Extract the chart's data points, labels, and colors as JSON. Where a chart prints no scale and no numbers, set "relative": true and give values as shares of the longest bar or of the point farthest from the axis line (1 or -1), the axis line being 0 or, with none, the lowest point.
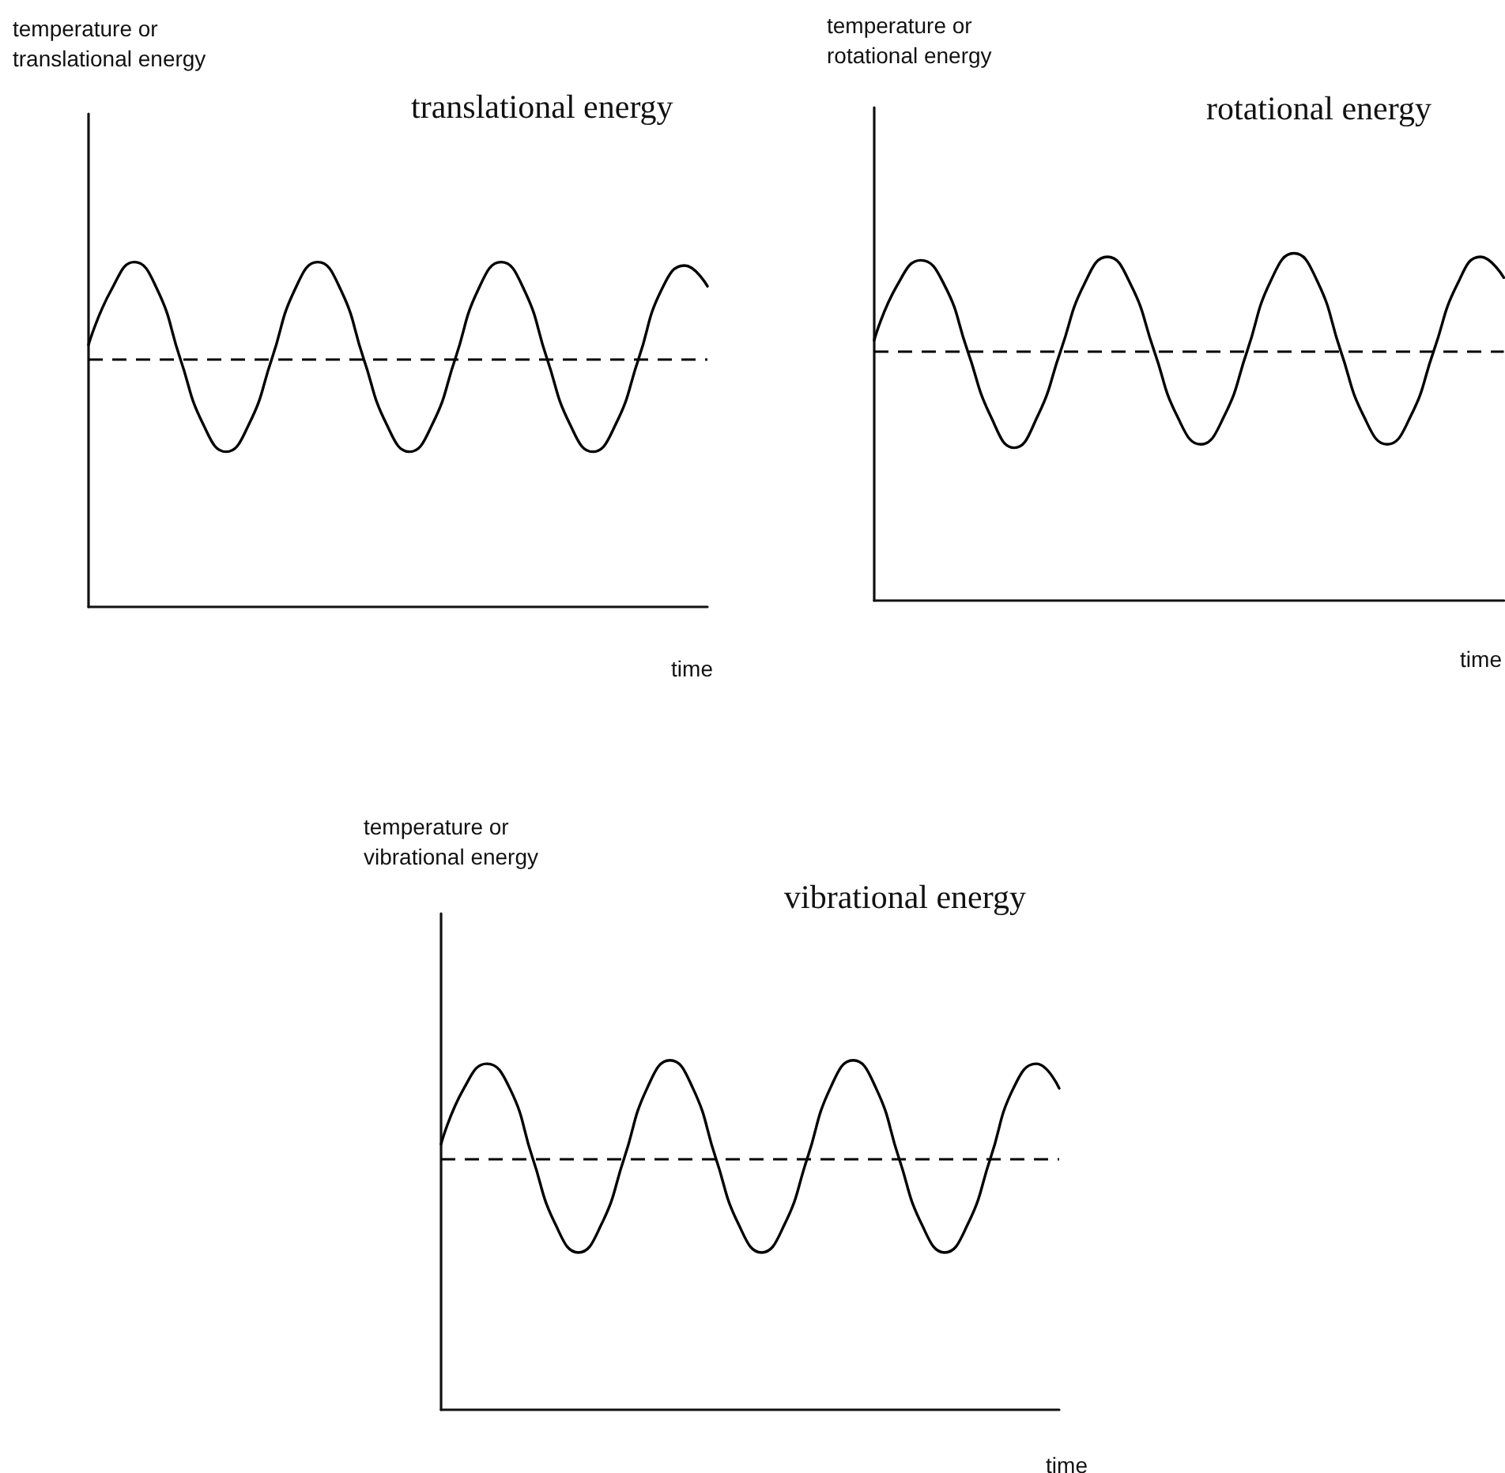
{
  "chart_data": [
    {
      "type": "line",
      "title": "translational energy",
      "xlabel": "time",
      "ylabel": "temperature or translational energy",
      "relative": true,
      "tick_labels": false,
      "marker": "none",
      "line_style": "solid",
      "categories": [
        null,
        null,
        null,
        null,
        null,
        null,
        null,
        null,
        null,
        null,
        null,
        null,
        null,
        null,
        null,
        null,
        null,
        null,
        null,
        null,
        null,
        null,
        null,
        null,
        null,
        null,
        null,
        null
      ],
      "series": [
        {
          "color": "#000000",
          "values": [
            0.76,
            0.92,
            1,
            0.92,
            0.72,
            0.53,
            0.45,
            0.53,
            0.72,
            0.92,
            1,
            0.92,
            0.72,
            0.53,
            0.45,
            0.53,
            0.72,
            0.92,
            1,
            0.92,
            0.72,
            0.53,
            0.45,
            0.53,
            0.72,
            0.92,
            0.99,
            0.93
          ]
        }
      ],
      "ref_lines": [
        {
          "axis": "y",
          "value": 0.72,
          "color": "#000000",
          "line_style": "dashed"
        }
      ]
    },
    {
      "type": "line",
      "title": "rotational energy",
      "xlabel": "time",
      "ylabel": "temperature or rotational energy",
      "relative": true,
      "tick_labels": false,
      "marker": "none",
      "line_style": "solid",
      "categories": [
        null,
        null,
        null,
        null,
        null,
        null,
        null,
        null,
        null,
        null,
        null,
        null,
        null,
        null,
        null,
        null,
        null,
        null,
        null,
        null,
        null,
        null,
        null,
        null,
        null,
        null,
        null,
        null
      ],
      "series": [
        {
          "color": "#000000",
          "values": [
            0.75,
            0.91,
            0.98,
            0.91,
            0.72,
            0.53,
            0.44,
            0.53,
            0.72,
            0.91,
            0.99,
            0.91,
            0.72,
            0.53,
            0.45,
            0.53,
            0.72,
            0.92,
            1,
            0.92,
            0.72,
            0.53,
            0.45,
            0.53,
            0.72,
            0.91,
            0.99,
            0.93
          ]
        }
      ],
      "ref_lines": [
        {
          "axis": "y",
          "value": 0.72,
          "color": "#000000",
          "line_style": "dashed"
        }
      ]
    },
    {
      "type": "line",
      "title": "vibrational energy",
      "xlabel": "time",
      "ylabel": "temperature or vibrational energy",
      "relative": true,
      "tick_labels": false,
      "marker": "none",
      "line_style": "solid",
      "categories": [
        null,
        null,
        null,
        null,
        null,
        null,
        null,
        null,
        null,
        null,
        null,
        null,
        null,
        null,
        null,
        null,
        null,
        null,
        null,
        null,
        null,
        null,
        null,
        null,
        null,
        null,
        null,
        null
      ],
      "series": [
        {
          "color": "#000000",
          "values": [
            0.76,
            0.92,
            0.99,
            0.92,
            0.72,
            0.53,
            0.45,
            0.53,
            0.72,
            0.92,
            1,
            0.92,
            0.72,
            0.53,
            0.45,
            0.53,
            0.72,
            0.92,
            1,
            0.92,
            0.72,
            0.53,
            0.45,
            0.53,
            0.72,
            0.92,
            0.99,
            0.92
          ]
        }
      ],
      "ref_lines": [
        {
          "axis": "y",
          "value": 0.72,
          "color": "#000000",
          "line_style": "dashed"
        }
      ]
    }
  ]
}
